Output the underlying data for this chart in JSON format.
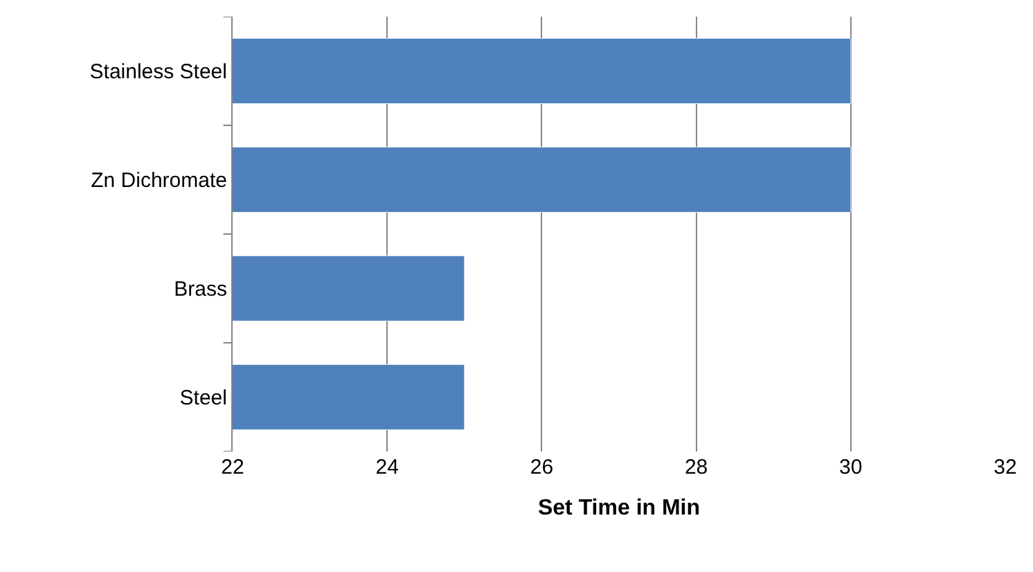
{
  "chart_data": {
    "type": "bar",
    "orientation": "horizontal",
    "xlabel": "Set Time in Min",
    "categories": [
      "Stainless Steel",
      "Zn Dichromate",
      "Brass",
      "Steel"
    ],
    "values": [
      30,
      30,
      25,
      25
    ],
    "color": "#4f81bd",
    "xlim": [
      22,
      32
    ],
    "xticks": [
      22,
      24,
      26,
      28,
      30,
      32
    ],
    "grid": "x",
    "legend": false
  }
}
